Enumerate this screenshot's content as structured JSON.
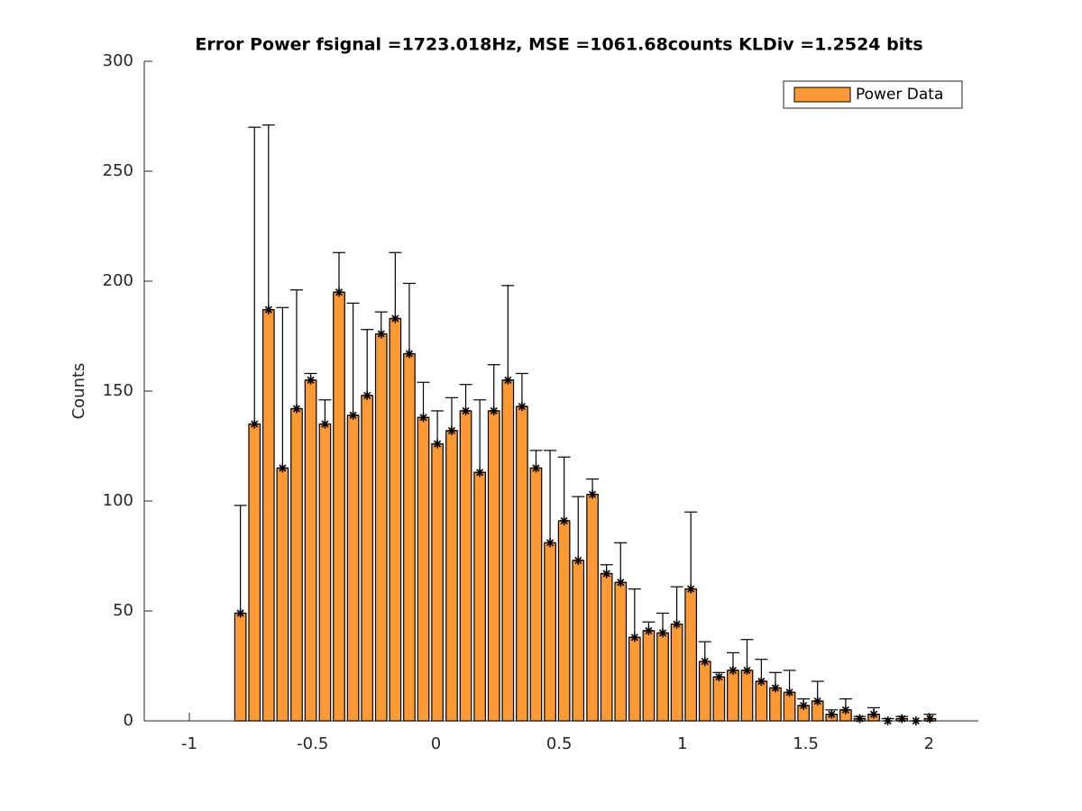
{
  "chart_data": {
    "type": "bar",
    "title": "Error Power fsignal =1723.018Hz, MSE =1061.68counts KLDiv =1.2524 bits",
    "y_label": "Counts",
    "x": [
      -0.793,
      -0.736,
      -0.679,
      -0.622,
      -0.565,
      -0.508,
      -0.45,
      -0.393,
      -0.336,
      -0.279,
      -0.222,
      -0.165,
      -0.108,
      -0.051,
      0.006,
      0.064,
      0.121,
      0.178,
      0.235,
      0.292,
      0.349,
      0.406,
      0.463,
      0.52,
      0.577,
      0.635,
      0.692,
      0.749,
      0.806,
      0.863,
      0.92,
      0.977,
      1.034,
      1.091,
      1.148,
      1.205,
      1.262,
      1.32,
      1.377,
      1.434,
      1.491,
      1.548,
      1.605,
      1.662,
      1.719,
      1.776,
      1.833,
      1.89,
      1.947,
      2.004
    ],
    "series": [
      {
        "name": "Power Data",
        "color": "#fd9a35",
        "values": [
          49,
          135,
          187,
          115,
          142,
          155,
          135,
          195,
          139,
          148,
          176,
          183,
          167,
          138,
          126,
          132,
          141,
          113,
          141,
          155,
          143,
          115,
          81,
          91,
          73,
          103,
          67,
          63,
          38,
          41,
          40,
          44,
          60,
          27,
          20,
          23,
          23,
          18,
          15,
          13,
          7,
          9,
          3,
          5,
          1,
          3,
          0,
          1,
          0,
          1
        ],
        "errors": [
          49,
          135,
          84,
          73,
          54,
          3,
          11,
          18,
          51,
          30,
          10,
          30,
          32,
          16,
          15,
          15,
          12,
          33,
          21,
          43,
          15,
          8,
          42,
          29,
          29,
          7,
          4,
          18,
          22,
          4,
          9,
          17,
          35,
          9,
          2,
          8,
          14,
          10,
          7,
          10,
          3,
          9,
          2,
          5,
          1,
          3,
          1,
          1,
          0,
          2
        ]
      }
    ],
    "xlim": [
      -1.183,
      2.2
    ],
    "ylim": [
      0,
      300
    ],
    "xticks": [
      -1,
      -0.5,
      0,
      0.5,
      1,
      1.5,
      2
    ],
    "yticks": [
      0,
      50,
      100,
      150,
      200,
      250,
      300
    ],
    "legend": "northeast"
  }
}
